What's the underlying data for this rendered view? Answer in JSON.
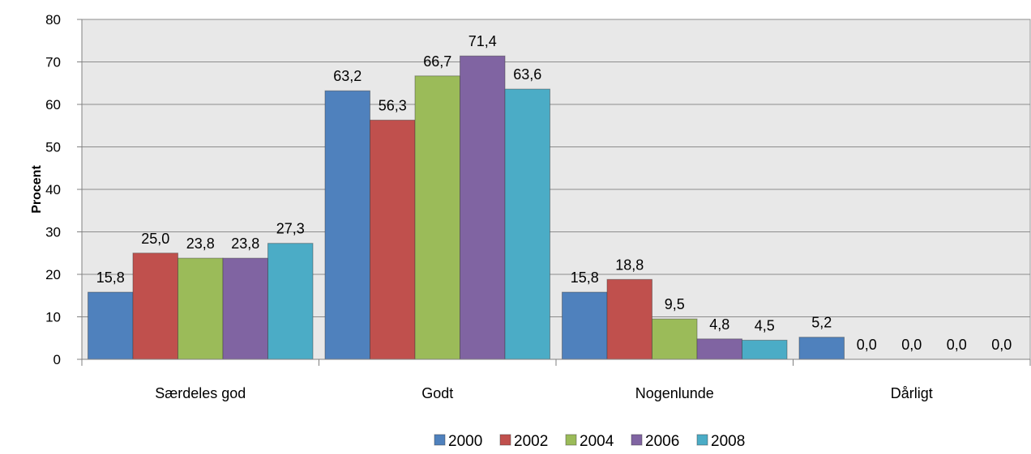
{
  "chart_data": {
    "type": "bar",
    "ylabel": "Procent",
    "xlabel": "",
    "ylim": [
      0,
      80
    ],
    "yticks": [
      0,
      10,
      20,
      30,
      40,
      50,
      60,
      70,
      80
    ],
    "grid": true,
    "legend_position": "bottom",
    "categories": [
      "Særdeles god",
      "Godt",
      "Nogenlunde",
      "Dårligt"
    ],
    "series": [
      {
        "name": "2000",
        "color": "#4F81BD",
        "values": [
          15.8,
          63.2,
          15.8,
          5.2
        ],
        "labels": [
          "15,8",
          "63,2",
          "15,8",
          "5,2"
        ]
      },
      {
        "name": "2002",
        "color": "#C0504D",
        "values": [
          25.0,
          56.3,
          18.8,
          0.0
        ],
        "labels": [
          "25,0",
          "56,3",
          "18,8",
          "0,0"
        ]
      },
      {
        "name": "2004",
        "color": "#9BBB59",
        "values": [
          23.8,
          66.7,
          9.5,
          0.0
        ],
        "labels": [
          "23,8",
          "66,7",
          "9,5",
          "0,0"
        ]
      },
      {
        "name": "2006",
        "color": "#8064A2",
        "values": [
          23.8,
          71.4,
          4.8,
          0.0
        ],
        "labels": [
          "23,8",
          "71,4",
          "4,8",
          "0,0"
        ]
      },
      {
        "name": "2008",
        "color": "#4BACC6",
        "values": [
          27.3,
          63.6,
          4.5,
          0.0
        ],
        "labels": [
          "27,3",
          "63,6",
          "4,5",
          "0,0"
        ]
      }
    ],
    "plot_background": "#E8E8E8"
  }
}
